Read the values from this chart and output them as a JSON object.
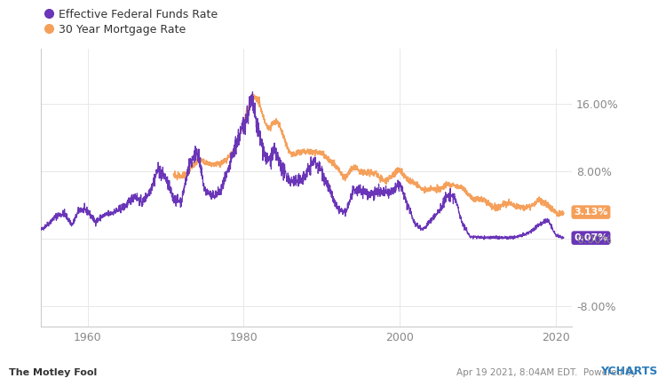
{
  "legend_labels": [
    "Effective Federal Funds Rate",
    "30 Year Mortgage Rate"
  ],
  "line_colors": [
    "#6a35b8",
    "#f5a05a"
  ],
  "effr_label": "0.07%",
  "mortgage_label": "3.13%",
  "ytick_positions": [
    -8,
    0,
    8,
    16
  ],
  "ytick_labels": [
    "-8.00%",
    "0.00%",
    "8.00%",
    "16.00%"
  ],
  "ylim": [
    -10.5,
    22.5
  ],
  "xlim": [
    1954,
    2022
  ],
  "xticks": [
    1960,
    1980,
    2000,
    2020
  ],
  "background_color": "#ffffff",
  "grid_color": "#e8e8e8",
  "tick_color": "#aaaaaa",
  "watermark_left": "The Motley Fool",
  "watermark_right": "Apr 19 2021, 8:04AM EDT.  Powered by ",
  "watermark_ycharts": "YCHARTS"
}
